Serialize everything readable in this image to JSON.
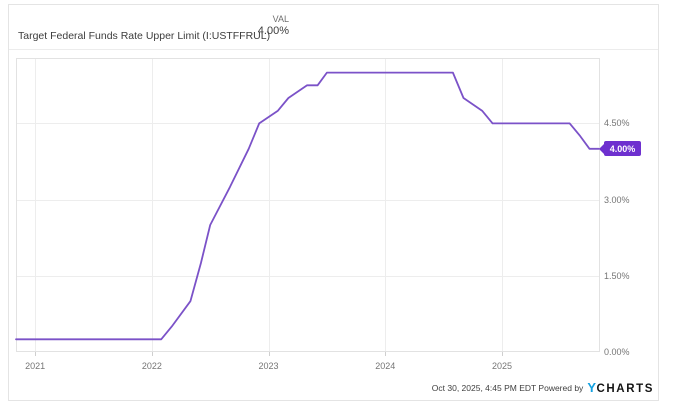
{
  "header": {
    "title": "Target Federal Funds Rate Upper Limit (I:USTFFRUL)",
    "legend_label": "VAL",
    "legend_value": "4.00%"
  },
  "chart_data": {
    "type": "line",
    "title": "Target Federal Funds Rate Upper Limit (I:USTFFRUL)",
    "xlabel": "",
    "ylabel": "",
    "xlim": [
      2020.836,
      2025.84
    ],
    "ylim": [
      0,
      5.787
    ],
    "grid": true,
    "legend_position": "none",
    "x_ticks": [
      {
        "pos": 2021,
        "label": "2021"
      },
      {
        "pos": 2022,
        "label": "2022"
      },
      {
        "pos": 2023,
        "label": "2023"
      },
      {
        "pos": 2024,
        "label": "2024"
      },
      {
        "pos": 2025,
        "label": "2025"
      }
    ],
    "y_ticks": [
      {
        "pos": 0.0,
        "label": "0.00%"
      },
      {
        "pos": 1.5,
        "label": "1.50%"
      },
      {
        "pos": 3.0,
        "label": "3.00%"
      },
      {
        "pos": 4.5,
        "label": "4.50%"
      }
    ],
    "series": [
      {
        "name": "Target Federal Funds Rate Upper Limit",
        "color": "#7b52c8",
        "points": [
          [
            2020.836,
            0.25
          ],
          [
            2022.08,
            0.25
          ],
          [
            2022.17,
            0.5
          ],
          [
            2022.33,
            1.0
          ],
          [
            2022.42,
            1.75
          ],
          [
            2022.5,
            2.5
          ],
          [
            2022.67,
            3.25
          ],
          [
            2022.83,
            4.0
          ],
          [
            2022.92,
            4.5
          ],
          [
            2023.08,
            4.75
          ],
          [
            2023.17,
            5.0
          ],
          [
            2023.33,
            5.25
          ],
          [
            2023.42,
            5.25
          ],
          [
            2023.5,
            5.5
          ],
          [
            2024.58,
            5.5
          ],
          [
            2024.67,
            5.0
          ],
          [
            2024.83,
            4.75
          ],
          [
            2024.92,
            4.5
          ],
          [
            2025.58,
            4.5
          ],
          [
            2025.67,
            4.25
          ],
          [
            2025.75,
            4.0
          ],
          [
            2025.83,
            4.0
          ]
        ]
      }
    ],
    "last_value": 4.0,
    "last_value_label": "4.00%"
  },
  "footer": {
    "timestamp": "Oct 30, 2025, 4:45 PM EDT",
    "powered_by": "Powered by",
    "logo_y": "Y",
    "logo_charts": "CHARTS"
  },
  "colors": {
    "line": "#7b52c8",
    "badge_bg": "#6e30cf",
    "gridline": "#ededed",
    "plot_border": "#e2e2e2",
    "tick": "#cfcfcf",
    "axis_text": "#757575",
    "title_text": "#3d3d3d",
    "logo_blue": "#12a0e0"
  }
}
